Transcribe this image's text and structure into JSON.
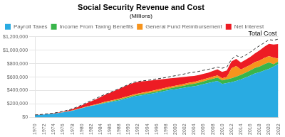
{
  "chart_data": {
    "type": "area",
    "stacked": true,
    "title": "Social Security Revenue and Cost",
    "subtitle": "(Millions)",
    "legend": "upper left",
    "grid": "y",
    "x": [
      1970,
      1971,
      1972,
      1973,
      1974,
      1975,
      1976,
      1977,
      1978,
      1979,
      1980,
      1981,
      1982,
      1983,
      1984,
      1985,
      1986,
      1987,
      1988,
      1989,
      1990,
      1991,
      1992,
      1993,
      1994,
      1995,
      1996,
      1997,
      1998,
      1999,
      2000,
      2001,
      2002,
      2003,
      2004,
      2005,
      2006,
      2007,
      2008,
      2009,
      2010,
      2011,
      2012,
      2013,
      2014,
      2015,
      2016,
      2017,
      2018,
      2019,
      2020,
      2021,
      2022
    ],
    "xlim": [
      1970,
      2022
    ],
    "xticks": [
      1970,
      1972,
      1974,
      1976,
      1978,
      1980,
      1982,
      1984,
      1986,
      1988,
      1990,
      1992,
      1994,
      1996,
      1998,
      2000,
      2002,
      2004,
      2006,
      2008,
      2010,
      2012,
      2014,
      2016,
      2018,
      2020,
      2022
    ],
    "ylim": [
      0,
      1200000
    ],
    "yticks": [
      {
        "value": 0,
        "label": "$0"
      },
      {
        "value": 200000,
        "label": "$200,000"
      },
      {
        "value": 400000,
        "label": "$400,000"
      },
      {
        "value": 600000,
        "label": "$600,000"
      },
      {
        "value": 800000,
        "label": "$800,000"
      },
      {
        "value": 1000000,
        "label": "$1,000,000"
      },
      {
        "value": 1200000,
        "label": "$1,200,000"
      }
    ],
    "series": [
      {
        "name": "Payroll Taxes",
        "type": "area",
        "color": "#29ABE2",
        "values": [
          33000,
          38000,
          43000,
          49000,
          56000,
          65000,
          75000,
          87000,
          100000,
          117000,
          136000,
          155000,
          170000,
          183000,
          197000,
          214000,
          225000,
          240000,
          254000,
          272000,
          290000,
          308000,
          322000,
          333000,
          344000,
          355000,
          368000,
          383000,
          397000,
          410000,
          420000,
          432000,
          444000,
          457000,
          465000,
          478000,
          495000,
          511000,
          528000,
          543000,
          497000,
          511000,
          525000,
          544000,
          568000,
          594000,
          622000,
          655000,
          672000,
          700000,
          722000,
          758000,
          797000
        ]
      },
      {
        "name": "Income From Taxing Benefits",
        "type": "area",
        "color": "#39B54A",
        "values": [
          0,
          0,
          0,
          0,
          0,
          0,
          0,
          0,
          0,
          0,
          0,
          0,
          0,
          3000,
          6000,
          8000,
          9000,
          10000,
          11000,
          12000,
          13000,
          14000,
          16000,
          17000,
          18000,
          19000,
          20000,
          21000,
          23000,
          25000,
          27000,
          29000,
          31000,
          33000,
          35000,
          38000,
          41000,
          44000,
          47000,
          50000,
          53000,
          56000,
          58000,
          62000,
          66000,
          71000,
          76000,
          81000,
          86000,
          91000,
          96000,
          32000,
          33000
        ]
      },
      {
        "name": "General Fund Reimbursement",
        "type": "area",
        "color": "#F7941D",
        "values": [
          1000,
          1000,
          1500,
          2000,
          2000,
          2500,
          3000,
          3500,
          4500,
          5500,
          6500,
          7500,
          8500,
          9500,
          10500,
          11500,
          12500,
          13500,
          14500,
          15500,
          16500,
          17500,
          18500,
          19500,
          20000,
          21000,
          22000,
          22000,
          22000,
          23000,
          24000,
          25000,
          26000,
          27000,
          28000,
          29000,
          30000,
          30000,
          31000,
          32000,
          33000,
          34000,
          148000,
          160000,
          78000,
          81000,
          84000,
          87000,
          90000,
          93000,
          96000,
          99000,
          47000
        ]
      },
      {
        "name": "Net Interest",
        "type": "area",
        "color": "#ED1C24",
        "values": [
          1500,
          2000,
          2500,
          3000,
          4000,
          6000,
          9000,
          13000,
          18000,
          26000,
          35000,
          48000,
          60000,
          74000,
          90000,
          105000,
          118000,
          132000,
          145000,
          156000,
          166000,
          172000,
          170000,
          168000,
          162000,
          155000,
          148000,
          140000,
          132000,
          125000,
          118000,
          110000,
          103000,
          96000,
          90000,
          85000,
          82000,
          80000,
          85000,
          90000,
          95000,
          99000,
          102000,
          105000,
          107000,
          110000,
          118000,
          130000,
          148000,
          165000,
          180000,
          195000,
          215000
        ]
      },
      {
        "name": "Total Cost",
        "type": "line",
        "line_style": "dashed",
        "color": "#333333",
        "values": [
          37000,
          42000,
          48000,
          56000,
          65000,
          76000,
          91000,
          108000,
          128000,
          155000,
          185000,
          220000,
          250000,
          280000,
          315000,
          343000,
          368000,
          401000,
          427000,
          460000,
          491000,
          521000,
          533000,
          545000,
          551000,
          561000,
          574000,
          583000,
          594000,
          609000,
          621000,
          633000,
          648000,
          663000,
          673000,
          685000,
          701000,
          715000,
          730000,
          748000,
          733000,
          748000,
          865000,
          920000,
          892000,
          927000,
          971000,
          1022000,
          1068000,
          1110000,
          1157000,
          1148000,
          1165000
        ]
      }
    ]
  }
}
